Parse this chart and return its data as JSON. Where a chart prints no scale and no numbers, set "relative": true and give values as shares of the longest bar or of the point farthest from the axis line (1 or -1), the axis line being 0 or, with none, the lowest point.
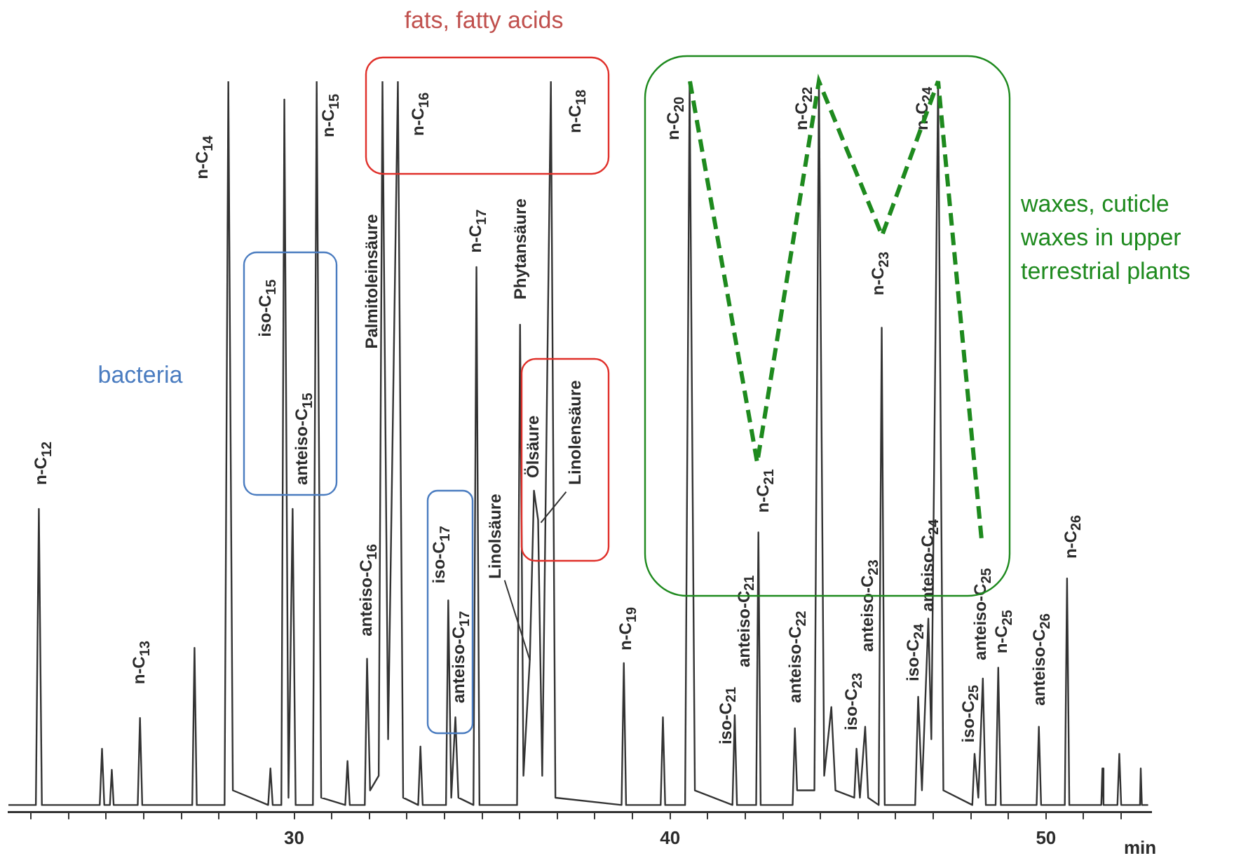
{
  "chart_data": {
    "type": "line",
    "relative": true,
    "xlabel": "min",
    "xlim": [
      22.4,
      52.8
    ],
    "xticks": [
      {
        "value": 23,
        "label": null
      },
      {
        "value": 24,
        "label": null
      },
      {
        "value": 25,
        "label": null
      },
      {
        "value": 26,
        "label": null
      },
      {
        "value": 27,
        "label": null
      },
      {
        "value": 28,
        "label": null
      },
      {
        "value": 29,
        "label": null
      },
      30,
      {
        "value": 31,
        "label": null
      },
      {
        "value": 32,
        "label": null
      },
      {
        "value": 33,
        "label": null
      },
      {
        "value": 34,
        "label": null
      },
      {
        "value": 35,
        "label": null
      },
      {
        "value": 36,
        "label": null
      },
      {
        "value": 37,
        "label": null
      },
      {
        "value": 38,
        "label": null
      },
      {
        "value": 39,
        "label": null
      },
      40,
      {
        "value": 41,
        "label": null
      },
      {
        "value": 42,
        "label": null
      },
      {
        "value": 43,
        "label": null
      },
      {
        "value": 44,
        "label": null
      },
      {
        "value": 45,
        "label": null
      },
      {
        "value": 46,
        "label": null
      },
      {
        "value": 47,
        "label": null
      },
      {
        "value": 48,
        "label": null
      },
      {
        "value": 49,
        "label": null
      },
      50,
      {
        "value": 51,
        "label": null
      },
      {
        "value": 52,
        "label": null
      }
    ],
    "x": [
      22.4,
      23.13,
      23.21,
      23.29,
      24.83,
      24.89,
      24.95,
      25.1,
      25.15,
      25.2,
      25.84,
      25.9,
      25.96,
      27.29,
      27.35,
      27.41,
      28.15,
      28.25,
      28.37,
      29.31,
      29.37,
      29.43,
      29.66,
      29.74,
      29.85,
      29.96,
      30.04,
      30.5,
      30.6,
      30.72,
      31.36,
      31.42,
      31.48,
      31.88,
      31.94,
      32.02,
      32.25,
      32.35,
      32.5,
      32.76,
      32.9,
      33.3,
      33.36,
      33.42,
      34.04,
      34.1,
      34.18,
      34.29,
      34.37,
      34.77,
      34.85,
      34.93,
      35.93,
      36.01,
      36.1,
      36.27,
      36.38,
      36.49,
      36.6,
      36.83,
      36.95,
      38.71,
      38.77,
      38.83,
      39.75,
      39.81,
      39.87,
      40.4,
      40.52,
      40.66,
      41.66,
      41.72,
      41.78,
      42.29,
      42.35,
      42.41,
      43.26,
      43.32,
      43.38,
      43.84,
      43.96,
      44.1,
      44.29,
      44.4,
      44.9,
      44.96,
      45.05,
      45.19,
      45.27,
      45.55,
      45.63,
      45.71,
      46.52,
      46.6,
      46.7,
      46.87,
      46.95,
      47.13,
      47.27,
      48.04,
      48.1,
      48.2,
      48.32,
      48.4,
      48.66,
      48.73,
      48.8,
      49.75,
      49.81,
      49.87,
      50.5,
      50.56,
      50.62,
      51.47,
      51.5,
      51.53,
      51.9,
      51.95,
      52.0,
      52.5,
      52.52,
      52.55,
      52.7
    ],
    "series": [
      {
        "color": "#333333",
        "values": [
          0.01,
          0.01,
          0.415,
          0.01,
          0.01,
          0.087,
          0.01,
          0.01,
          0.058,
          0.01,
          0.01,
          0.129,
          0.01,
          0.01,
          0.225,
          0.01,
          0.01,
          1,
          0.03,
          0.01,
          0.06,
          0.01,
          0.01,
          0.975,
          0.02,
          0.415,
          0.01,
          0.01,
          1,
          0.02,
          0.01,
          0.07,
          0.01,
          0.01,
          0.21,
          0.03,
          0.05,
          1,
          0.1,
          1,
          0.02,
          0.01,
          0.09,
          0.01,
          0.01,
          0.29,
          0.02,
          0.13,
          0.02,
          0.01,
          0.746,
          0.01,
          0.01,
          0.667,
          0.05,
          0.21,
          0.44,
          0.4,
          0.05,
          1,
          0.02,
          0.01,
          0.204,
          0.01,
          0.01,
          0.13,
          0.01,
          0.01,
          1,
          0.03,
          0.01,
          0.133,
          0.01,
          0.01,
          0.383,
          0.01,
          0.01,
          0.115,
          0.03,
          0.03,
          1,
          0.05,
          0.144,
          0.03,
          0.02,
          0.087,
          0.02,
          0.117,
          0.02,
          0.01,
          0.663,
          0.01,
          0.01,
          0.158,
          0.03,
          0.265,
          0.1,
          1,
          0.03,
          0.01,
          0.08,
          0.02,
          0.183,
          0.01,
          0.01,
          0.198,
          0.01,
          0.01,
          0.117,
          0.01,
          0.01,
          0.32,
          0.01,
          0.01,
          0.06,
          0.01,
          0.01,
          0.08,
          0.01,
          0.01,
          0.06,
          0.01,
          0.01
        ]
      }
    ],
    "annotations": [
      {
        "text": "n-C$_{12}$",
        "x": 23.21,
        "y": 0.415
      },
      {
        "text": "n-C$_{13}$",
        "x": 25.9,
        "y": 0.129
      },
      {
        "text": "n-C$_{14}$",
        "x": 28.25,
        "y": 0.91
      },
      {
        "text": "iso-C$_{15}$",
        "x": 29.74,
        "y": 0.7
      },
      {
        "text": "anteiso-C$_{15}$",
        "x": 29.96,
        "y": 0.415
      },
      {
        "text": "n-C$_{15}$",
        "x": 30.6,
        "y": 1
      },
      {
        "text": "anteiso-C$_{16}$",
        "x": 31.94,
        "y": 0.21
      },
      {
        "text": "Palmitoleinsäure",
        "x": 32.35,
        "y": 0.73
      },
      {
        "text": "n-C$_{16}$",
        "x": 32.76,
        "y": 1
      },
      {
        "text": "iso-C$_{17}$",
        "x": 34.1,
        "y": 0.29
      },
      {
        "text": "anteiso-C$_{17}$",
        "x": 34.29,
        "y": 0.13
      },
      {
        "text": "n-C$_{17}$",
        "x": 34.85,
        "y": 0.746
      },
      {
        "text": "Phytansäure",
        "x": 36.01,
        "y": 0.667
      },
      {
        "text": "Linolsäure",
        "x": 36.27,
        "y": 0.21
      },
      {
        "text": "Ölsäure",
        "x": 36.38,
        "y": 0.44
      },
      {
        "text": "Linolensäure",
        "x": 36.49,
        "y": 0.4
      },
      {
        "text": "n-C$_{18}$",
        "x": 36.83,
        "y": 1
      },
      {
        "text": "n-C$_{19}$",
        "x": 38.77,
        "y": 0.204
      },
      {
        "text": "n-C$_{20}$",
        "x": 40.52,
        "y": 1
      },
      {
        "text": "iso-C$_{21}$",
        "x": 41.72,
        "y": 0.133
      },
      {
        "text": "anteiso-C$_{21}$",
        "x": 41.72,
        "y": 0.133
      },
      {
        "text": "n-C$_{21}$",
        "x": 42.35,
        "y": 0.383
      },
      {
        "text": "anteiso-C$_{22}$",
        "x": 43.32,
        "y": 0.115
      },
      {
        "text": "n-C$_{22}$",
        "x": 43.96,
        "y": 1
      },
      {
        "text": "iso-C$_{23}$",
        "x": 44.96,
        "y": 0.087
      },
      "anteiso-C$_{23}$",
      {
        "text": "n-C$_{23}$",
        "x": 45.63,
        "y": 0.663
      },
      {
        "text": "iso-C$_{24}$",
        "x": 46.6,
        "y": 0.158
      },
      {
        "text": "anteiso-C$_{24}$",
        "x": 46.87,
        "y": 0.265
      },
      {
        "text": "n-C$_{24}$",
        "x": 47.13,
        "y": 1
      },
      {
        "text": "iso-C$_{25}$",
        "x": 48.1,
        "y": 0.08
      },
      {
        "text": "anteiso-C$_{25}$",
        "x": 48.32,
        "y": 0.183
      },
      {
        "text": "n-C$_{25}$",
        "x": 48.73,
        "y": 0.198
      },
      {
        "text": "anteiso-C$_{26}$",
        "x": 49.81,
        "y": 0.117
      },
      {
        "text": "n-C$_{26}$",
        "x": 50.56,
        "y": 0.32
      },
      "bacteria",
      "fats, fatty acids",
      "waxes, cuticle waxes in upper terrestrial plants"
    ]
  }
}
